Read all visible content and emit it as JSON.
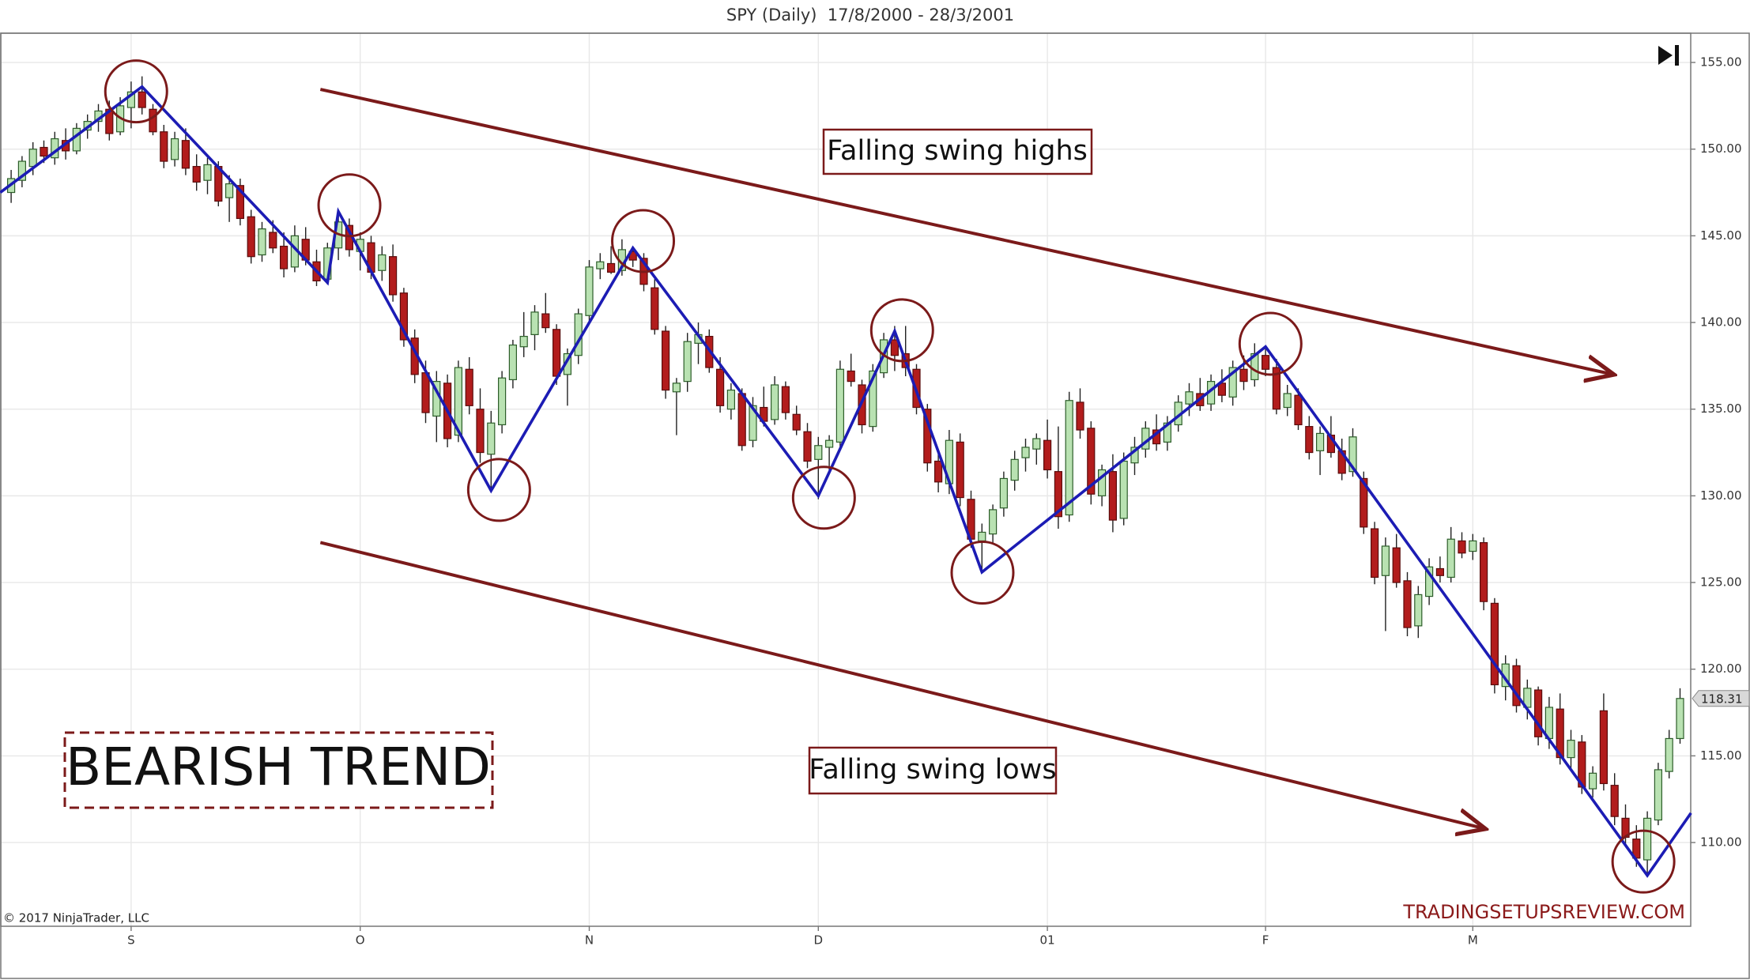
{
  "chart_data": {
    "type": "candlestick",
    "title": "SPY (Daily)  17/8/2000 - 28/3/2001",
    "copyright": "© 2017 NinjaTrader, LLC",
    "watermark": "TRADINGSETUPSREVIEW.COM",
    "trend_label": "BEARISH TREND",
    "annotations": [
      "Falling swing highs",
      "Falling swing lows"
    ],
    "up_color": "#b9e2b2",
    "down_color": "#b21c1c",
    "grid": true,
    "ylim": [
      105.17,
      156.67
    ],
    "yticks": [
      {
        "value": 110,
        "label": "110.00"
      },
      {
        "value": 115,
        "label": "115.00"
      },
      {
        "value": 120,
        "label": "120.00"
      },
      {
        "value": 125,
        "label": "125.00"
      },
      {
        "value": 130,
        "label": "130.00"
      },
      {
        "value": 135,
        "label": "135.00"
      },
      {
        "value": 140,
        "label": "140.00"
      },
      {
        "value": 145,
        "label": "145.00"
      },
      {
        "value": 150,
        "label": "150.00"
      },
      {
        "value": 155,
        "label": "155.00"
      }
    ],
    "categories": [
      null,
      null,
      null,
      null,
      null,
      null,
      null,
      null,
      null,
      null,
      null,
      "S",
      null,
      null,
      null,
      null,
      null,
      null,
      null,
      null,
      null,
      null,
      null,
      null,
      null,
      null,
      null,
      null,
      null,
      null,
      null,
      null,
      "O",
      null,
      null,
      null,
      null,
      null,
      null,
      null,
      null,
      null,
      null,
      null,
      null,
      null,
      null,
      null,
      null,
      null,
      null,
      null,
      null,
      "N",
      null,
      null,
      null,
      null,
      null,
      null,
      null,
      null,
      null,
      null,
      null,
      null,
      null,
      null,
      null,
      null,
      null,
      null,
      null,
      null,
      "D",
      null,
      null,
      null,
      null,
      null,
      null,
      null,
      null,
      null,
      null,
      null,
      null,
      null,
      null,
      null,
      null,
      null,
      null,
      null,
      null,
      "01",
      null,
      null,
      null,
      null,
      null,
      null,
      null,
      null,
      null,
      null,
      null,
      null,
      null,
      null,
      null,
      null,
      null,
      null,
      null,
      "F",
      null,
      null,
      null,
      null,
      null,
      null,
      null,
      null,
      null,
      null,
      null,
      null,
      null,
      null,
      null,
      null,
      null,
      null,
      "M",
      null,
      null,
      null,
      null,
      null,
      null,
      null,
      null,
      null,
      null,
      null,
      null,
      null,
      null,
      null,
      null,
      null,
      null,
      null
    ],
    "ohlc": [
      [
        147.5,
        148.8,
        146.9,
        148.3
      ],
      [
        148.2,
        149.6,
        147.8,
        149.3
      ],
      [
        149.0,
        150.4,
        148.5,
        150.0
      ],
      [
        150.1,
        150.5,
        149.2,
        149.6
      ],
      [
        149.5,
        151.0,
        149.1,
        150.6
      ],
      [
        150.5,
        151.2,
        149.4,
        149.9
      ],
      [
        149.9,
        151.5,
        149.7,
        151.2
      ],
      [
        151.1,
        152.0,
        150.6,
        151.6
      ],
      [
        151.6,
        152.6,
        151.0,
        152.2
      ],
      [
        152.3,
        152.8,
        150.5,
        150.9
      ],
      [
        151.0,
        153.0,
        150.8,
        152.5
      ],
      [
        152.4,
        153.9,
        151.2,
        153.3
      ],
      [
        153.3,
        154.2,
        152.0,
        152.4
      ],
      [
        152.3,
        152.6,
        150.8,
        151.0
      ],
      [
        151.0,
        151.4,
        148.9,
        149.3
      ],
      [
        149.4,
        151.0,
        149.0,
        150.6
      ],
      [
        150.5,
        151.2,
        148.5,
        148.9
      ],
      [
        149.0,
        149.7,
        147.6,
        148.1
      ],
      [
        148.2,
        149.5,
        147.4,
        149.1
      ],
      [
        149.0,
        149.3,
        146.7,
        147.0
      ],
      [
        147.2,
        148.5,
        145.8,
        148.0
      ],
      [
        147.9,
        148.3,
        145.6,
        146.0
      ],
      [
        146.1,
        146.5,
        143.4,
        143.8
      ],
      [
        143.9,
        145.8,
        143.5,
        145.4
      ],
      [
        145.2,
        145.9,
        144.0,
        144.3
      ],
      [
        144.4,
        145.2,
        142.6,
        143.1
      ],
      [
        143.2,
        145.6,
        142.9,
        145.0
      ],
      [
        144.8,
        145.5,
        143.3,
        143.6
      ],
      [
        143.5,
        144.2,
        142.1,
        142.4
      ],
      [
        142.5,
        144.6,
        142.2,
        144.3
      ],
      [
        144.3,
        146.4,
        143.6,
        145.8
      ],
      [
        145.6,
        146.0,
        143.8,
        144.2
      ],
      [
        144.1,
        145.2,
        143.0,
        144.8
      ],
      [
        144.6,
        145.0,
        142.5,
        142.9
      ],
      [
        143.0,
        144.4,
        142.4,
        143.9
      ],
      [
        143.8,
        144.5,
        141.2,
        141.6
      ],
      [
        141.7,
        142.0,
        138.6,
        139.0
      ],
      [
        139.1,
        139.6,
        136.5,
        137.0
      ],
      [
        137.1,
        137.8,
        134.2,
        134.8
      ],
      [
        134.6,
        137.2,
        133.1,
        136.6
      ],
      [
        136.5,
        137.0,
        132.8,
        133.3
      ],
      [
        133.5,
        137.8,
        133.1,
        137.4
      ],
      [
        137.3,
        138.0,
        134.7,
        135.2
      ],
      [
        135.0,
        136.2,
        131.9,
        132.5
      ],
      [
        132.4,
        134.9,
        130.3,
        134.2
      ],
      [
        134.1,
        137.2,
        133.6,
        136.8
      ],
      [
        136.7,
        139.0,
        136.2,
        138.7
      ],
      [
        138.6,
        140.6,
        138.0,
        139.2
      ],
      [
        139.3,
        141.0,
        138.4,
        140.6
      ],
      [
        140.5,
        141.7,
        139.4,
        139.7
      ],
      [
        139.6,
        139.9,
        136.4,
        136.9
      ],
      [
        137.0,
        138.5,
        135.2,
        138.2
      ],
      [
        138.1,
        140.8,
        137.6,
        140.5
      ],
      [
        140.4,
        143.6,
        140.0,
        143.2
      ],
      [
        143.1,
        144.0,
        142.5,
        143.5
      ],
      [
        143.4,
        144.4,
        142.8,
        142.9
      ],
      [
        143.0,
        144.8,
        142.7,
        144.2
      ],
      [
        144.1,
        144.3,
        143.2,
        143.6
      ],
      [
        143.7,
        144.0,
        141.8,
        142.2
      ],
      [
        142.0,
        142.5,
        139.3,
        139.6
      ],
      [
        139.5,
        139.8,
        135.6,
        136.1
      ],
      [
        136.0,
        136.8,
        133.5,
        136.5
      ],
      [
        136.6,
        139.4,
        136.0,
        138.9
      ],
      [
        138.8,
        140.0,
        137.6,
        139.3
      ],
      [
        139.2,
        139.6,
        137.1,
        137.4
      ],
      [
        137.3,
        138.0,
        134.8,
        135.2
      ],
      [
        135.0,
        136.5,
        134.4,
        136.1
      ],
      [
        135.9,
        136.2,
        132.6,
        132.9
      ],
      [
        133.2,
        135.7,
        132.8,
        135.2
      ],
      [
        135.1,
        136.3,
        134.0,
        134.3
      ],
      [
        134.4,
        136.9,
        134.1,
        136.4
      ],
      [
        136.3,
        136.6,
        134.4,
        134.8
      ],
      [
        134.7,
        135.2,
        133.5,
        133.8
      ],
      [
        133.7,
        134.2,
        131.6,
        132.0
      ],
      [
        132.1,
        133.4,
        129.8,
        132.9
      ],
      [
        132.8,
        133.5,
        131.5,
        133.2
      ],
      [
        133.1,
        137.8,
        132.7,
        137.3
      ],
      [
        137.2,
        138.2,
        136.3,
        136.6
      ],
      [
        136.4,
        136.7,
        133.6,
        134.1
      ],
      [
        134.0,
        137.6,
        133.7,
        137.2
      ],
      [
        137.1,
        139.4,
        136.8,
        139.0
      ],
      [
        139.0,
        139.8,
        137.2,
        138.1
      ],
      [
        138.2,
        139.8,
        136.9,
        137.4
      ],
      [
        137.3,
        137.6,
        134.7,
        135.1
      ],
      [
        135.0,
        135.3,
        131.4,
        131.9
      ],
      [
        132.0,
        132.6,
        130.2,
        130.8
      ],
      [
        130.7,
        133.8,
        130.1,
        133.2
      ],
      [
        133.1,
        133.6,
        129.4,
        129.9
      ],
      [
        129.8,
        130.3,
        127.0,
        127.5
      ],
      [
        127.4,
        128.4,
        125.6,
        127.9
      ],
      [
        127.8,
        129.5,
        127.3,
        129.2
      ],
      [
        129.3,
        131.4,
        128.8,
        131.0
      ],
      [
        130.9,
        132.6,
        130.3,
        132.1
      ],
      [
        132.2,
        133.3,
        131.4,
        132.8
      ],
      [
        132.7,
        133.6,
        131.8,
        133.3
      ],
      [
        133.2,
        134.4,
        131.0,
        131.5
      ],
      [
        131.4,
        134.0,
        128.1,
        128.8
      ],
      [
        128.9,
        136.0,
        128.5,
        135.5
      ],
      [
        135.4,
        136.2,
        133.3,
        133.8
      ],
      [
        133.9,
        134.3,
        129.5,
        130.1
      ],
      [
        130.0,
        131.8,
        129.4,
        131.5
      ],
      [
        131.4,
        132.4,
        127.9,
        128.6
      ],
      [
        128.7,
        132.5,
        128.3,
        132.0
      ],
      [
        131.9,
        133.4,
        131.2,
        132.8
      ],
      [
        132.7,
        134.3,
        132.2,
        133.9
      ],
      [
        133.8,
        134.7,
        132.6,
        133.0
      ],
      [
        133.1,
        134.6,
        132.6,
        134.2
      ],
      [
        134.1,
        135.8,
        133.7,
        135.4
      ],
      [
        135.3,
        136.5,
        134.6,
        136.0
      ],
      [
        135.9,
        136.8,
        134.9,
        135.2
      ],
      [
        135.3,
        137.0,
        134.9,
        136.6
      ],
      [
        136.5,
        137.3,
        135.4,
        135.8
      ],
      [
        135.7,
        137.8,
        135.2,
        137.4
      ],
      [
        137.3,
        138.1,
        136.1,
        136.6
      ],
      [
        136.7,
        138.8,
        136.3,
        138.2
      ],
      [
        138.1,
        138.6,
        136.9,
        137.3
      ],
      [
        137.4,
        137.9,
        134.7,
        135.0
      ],
      [
        135.1,
        136.4,
        134.6,
        135.9
      ],
      [
        135.8,
        136.2,
        133.8,
        134.1
      ],
      [
        134.0,
        134.6,
        132.1,
        132.5
      ],
      [
        132.6,
        134.0,
        131.2,
        133.6
      ],
      [
        133.5,
        134.6,
        132.2,
        132.5
      ],
      [
        132.6,
        133.3,
        130.9,
        131.3
      ],
      [
        131.4,
        133.9,
        131.1,
        133.4
      ],
      [
        131.0,
        131.4,
        127.8,
        128.2
      ],
      [
        128.1,
        128.5,
        124.9,
        125.3
      ],
      [
        125.4,
        127.6,
        122.2,
        127.1
      ],
      [
        127.0,
        127.8,
        124.7,
        125.0
      ],
      [
        125.1,
        125.6,
        121.9,
        122.4
      ],
      [
        122.5,
        124.8,
        121.8,
        124.3
      ],
      [
        124.2,
        126.4,
        123.7,
        125.9
      ],
      [
        125.8,
        126.5,
        125.0,
        125.4
      ],
      [
        125.3,
        128.2,
        125.0,
        127.5
      ],
      [
        127.4,
        127.9,
        126.4,
        126.7
      ],
      [
        126.8,
        127.8,
        126.3,
        127.4
      ],
      [
        127.3,
        127.6,
        123.4,
        123.9
      ],
      [
        123.8,
        124.1,
        118.6,
        119.1
      ],
      [
        119.0,
        120.8,
        118.2,
        120.3
      ],
      [
        120.2,
        120.6,
        117.5,
        117.9
      ],
      [
        117.8,
        119.4,
        117.1,
        118.9
      ],
      [
        118.8,
        119.0,
        115.6,
        116.1
      ],
      [
        116.0,
        118.4,
        115.4,
        117.8
      ],
      [
        117.7,
        118.6,
        114.5,
        114.9
      ],
      [
        114.9,
        116.5,
        114.2,
        115.9
      ],
      [
        115.8,
        116.2,
        112.8,
        113.2
      ],
      [
        113.1,
        114.4,
        112.6,
        114.0
      ],
      [
        117.6,
        118.6,
        113.0,
        113.4
      ],
      [
        113.3,
        114.0,
        111.0,
        111.5
      ],
      [
        111.4,
        112.2,
        109.8,
        110.3
      ],
      [
        110.2,
        111.0,
        108.6,
        109.1
      ],
      [
        109.0,
        111.8,
        108.2,
        111.4
      ],
      [
        111.3,
        114.6,
        111.0,
        114.2
      ],
      [
        114.1,
        116.5,
        113.7,
        116.0
      ],
      [
        116.0,
        118.9,
        115.7,
        118.31
      ]
    ],
    "zigzag": {
      "color": "#1c1cb4",
      "x": [
        -1,
        12,
        29,
        30,
        44,
        57,
        74,
        81,
        89,
        115,
        150,
        154
      ],
      "y": [
        147.5,
        153.6,
        142.3,
        146.4,
        130.3,
        144.3,
        130.0,
        139.5,
        125.6,
        138.6,
        108.1,
        111.7
      ]
    },
    "swing_circles": {
      "color": "#7b1a1a",
      "x": [
        11.46,
        31.01,
        44.73,
        57.93,
        74.51,
        81.68,
        89.05,
        115.45,
        149.64
      ],
      "y": [
        153.33,
        146.76,
        130.34,
        144.7,
        129.89,
        139.55,
        125.57,
        138.77,
        108.9
      ]
    },
    "trendlines": [
      {
        "color": "#7b1a1a",
        "x": [
          28.35,
          146.67
        ],
        "y": [
          153.45,
          137.03
        ]
      },
      {
        "color": "#7b1a1a",
        "x": [
          28.35,
          134.9
        ],
        "y": [
          127.31,
          110.83
        ]
      }
    ]
  }
}
